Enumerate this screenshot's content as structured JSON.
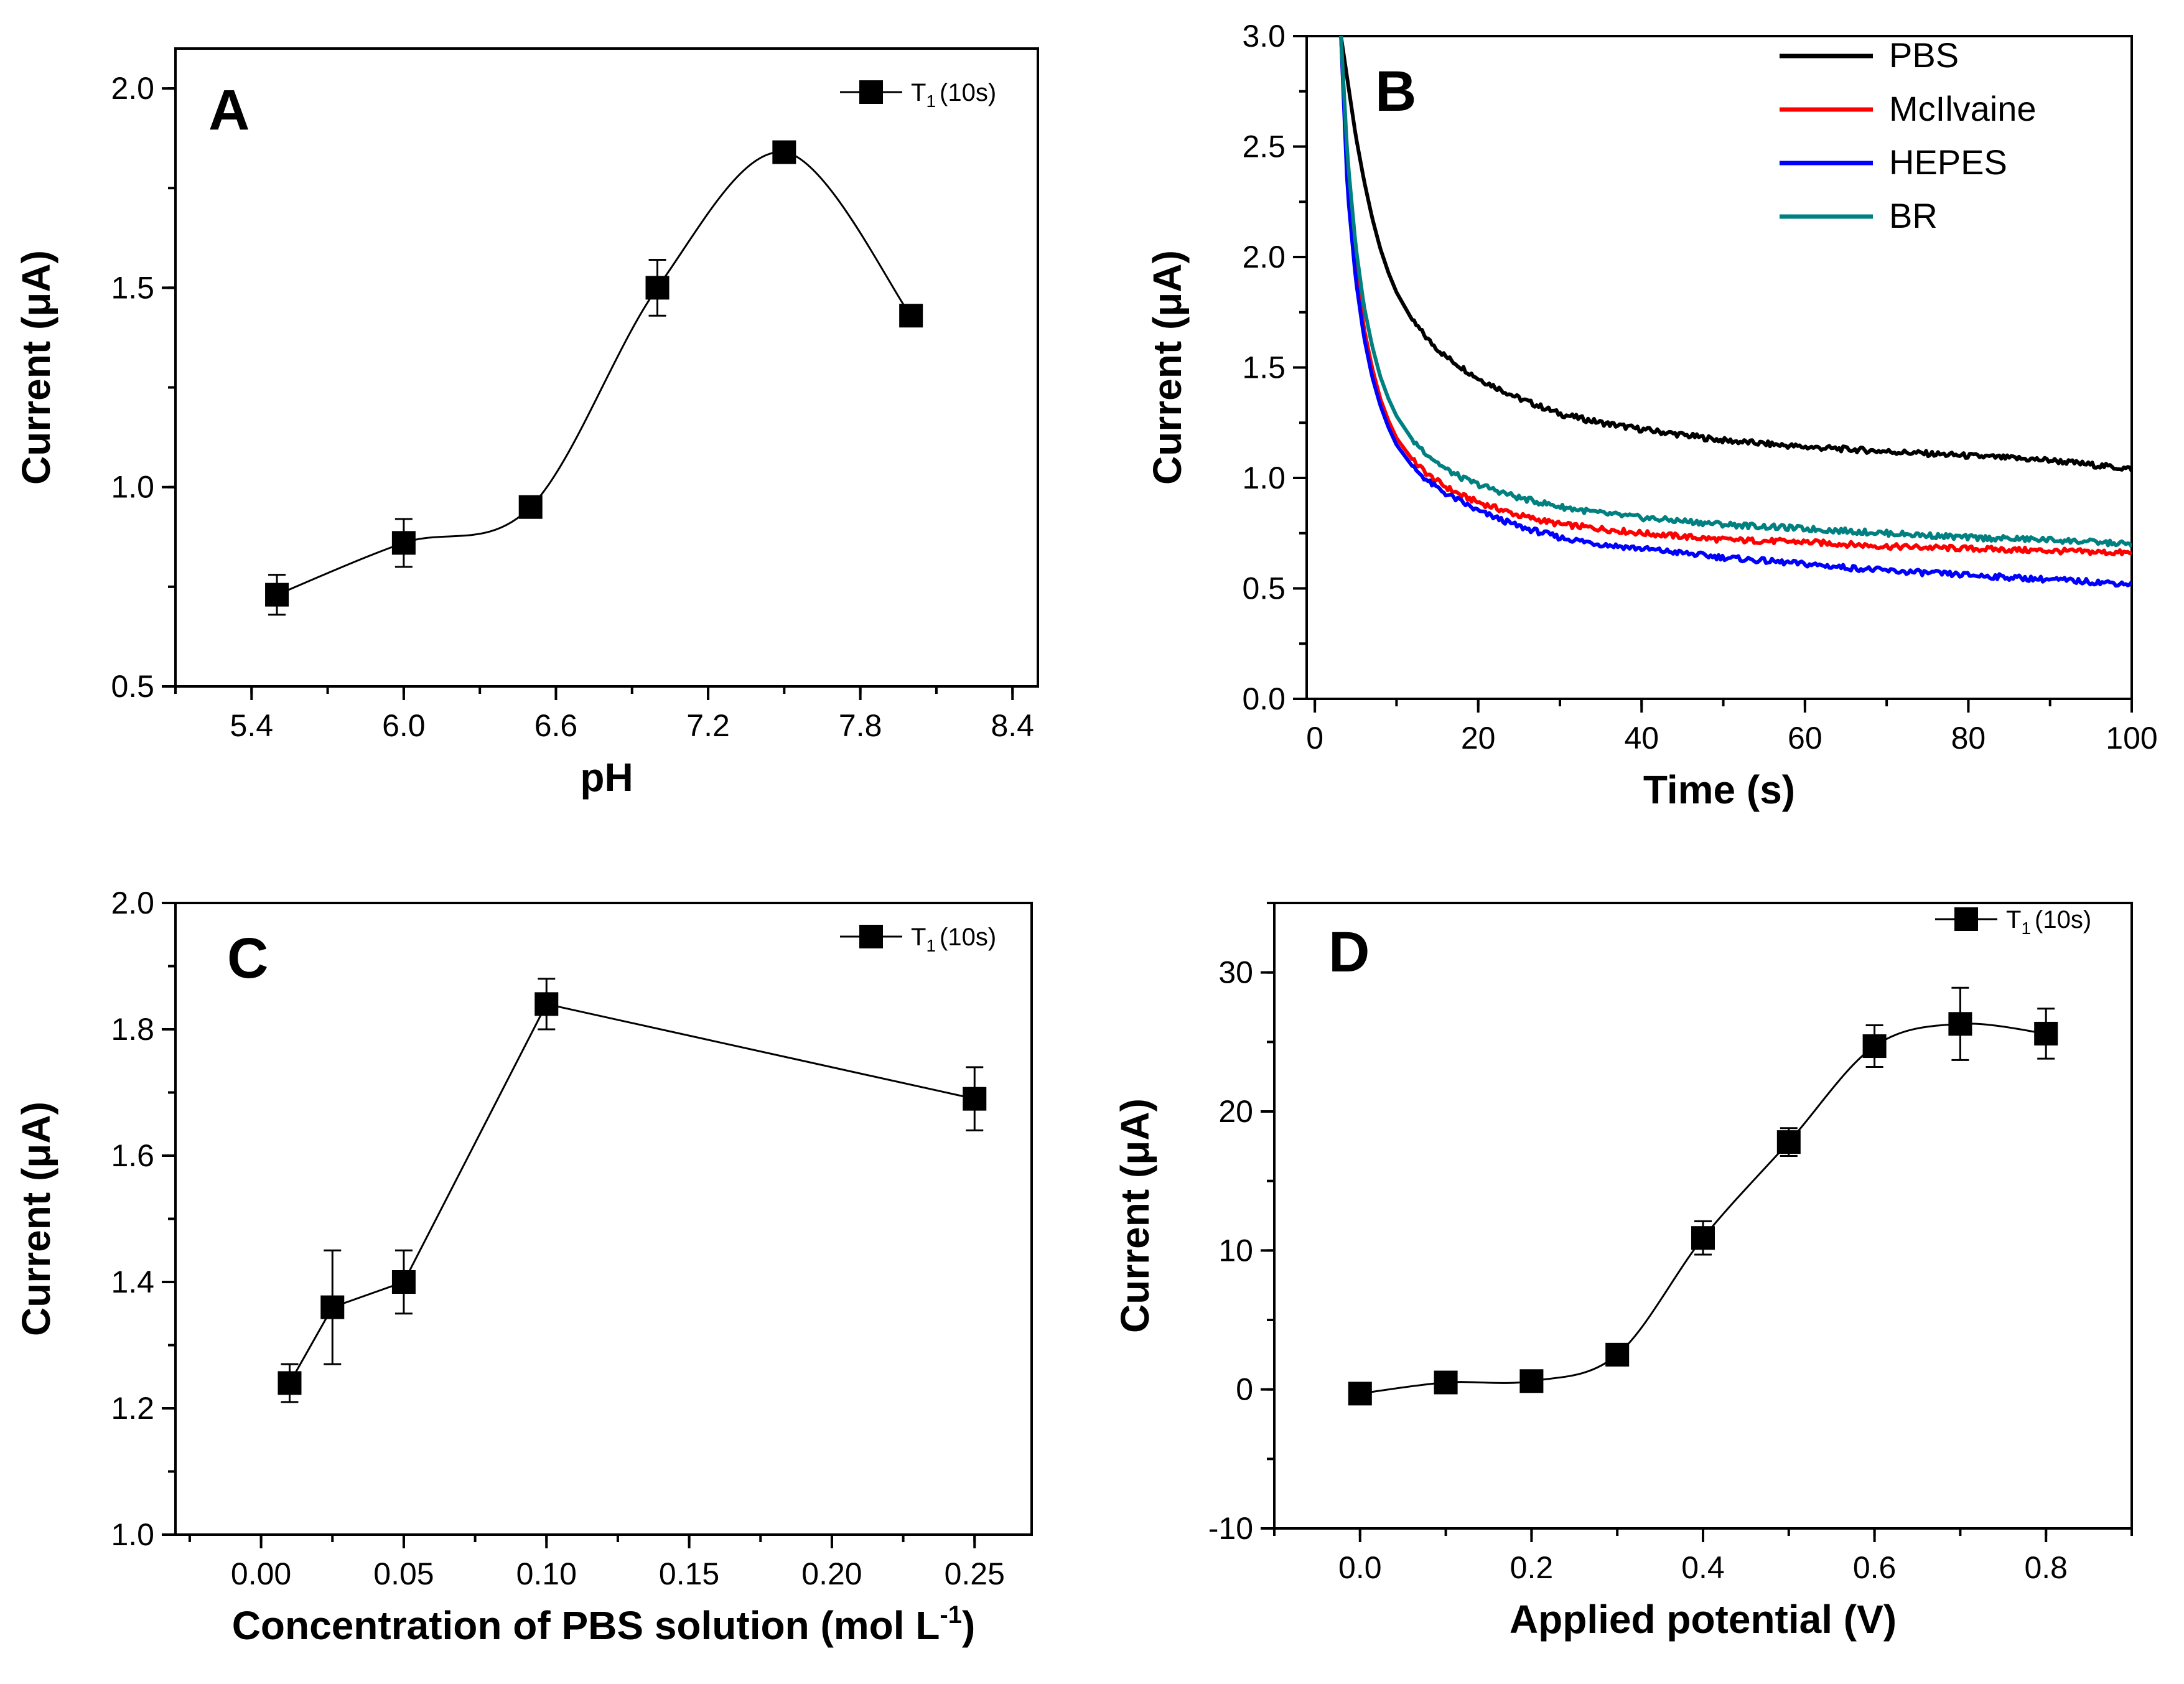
{
  "chart_data": [
    {
      "panel": "A",
      "type": "line",
      "connector": "spline",
      "xlabel": "pH",
      "ylabel": "Current (μA)",
      "xlim": [
        5.1,
        8.5
      ],
      "ylim": [
        0.5,
        2.1
      ],
      "xticks": [
        5.4,
        6.0,
        6.6,
        7.2,
        7.8,
        8.4
      ],
      "xtick_labels": [
        "5.4",
        "6.0",
        "6.6",
        "7.2",
        "7.8",
        "8.4"
      ],
      "xminor": 0.3,
      "yticks": [
        0.5,
        1.0,
        1.5,
        2.0
      ],
      "ytick_labels": [
        "0.5",
        "1.0",
        "1.5",
        "2.0"
      ],
      "yminor": 0.25,
      "legend": {
        "position": "top-right",
        "symbol": "T",
        "subscript": "1",
        "suffix": "(10s)"
      },
      "series": [
        {
          "name": "T1(10s)",
          "x": [
            5.5,
            6.0,
            6.5,
            7.0,
            7.5,
            8.0
          ],
          "y": [
            0.73,
            0.86,
            0.95,
            1.5,
            1.84,
            1.43
          ],
          "err": [
            0.05,
            0.06,
            0.0,
            0.07,
            0.0,
            0.0
          ]
        }
      ]
    },
    {
      "panel": "B",
      "type": "line",
      "xlabel": "Time (s)",
      "ylabel": "Current (μA)",
      "xlim": [
        -1,
        100
      ],
      "ylim": [
        0.0,
        3.0
      ],
      "xticks": [
        0,
        20,
        40,
        60,
        80,
        100
      ],
      "xtick_labels": [
        "0",
        "20",
        "40",
        "60",
        "80",
        "100"
      ],
      "xminor": 10,
      "yticks": [
        0.0,
        0.5,
        1.0,
        1.5,
        2.0,
        2.5,
        3.0
      ],
      "ytick_labels": [
        "0.0",
        "0.5",
        "1.0",
        "1.5",
        "2.0",
        "2.5",
        "3.0"
      ],
      "yminor": 0.25,
      "legend": {
        "position": "top-right"
      },
      "series": [
        {
          "name": "PBS",
          "color": "#000000",
          "x": [
            3.2,
            4,
            5,
            6,
            7,
            8,
            9,
            10,
            12,
            14,
            16,
            18,
            20,
            25,
            30,
            35,
            40,
            50,
            60,
            70,
            80,
            90,
            100
          ],
          "y": [
            3.0,
            2.8,
            2.55,
            2.35,
            2.18,
            2.04,
            1.93,
            1.84,
            1.71,
            1.62,
            1.55,
            1.5,
            1.45,
            1.36,
            1.29,
            1.25,
            1.22,
            1.17,
            1.14,
            1.12,
            1.1,
            1.08,
            1.04
          ]
        },
        {
          "name": "McIlvaine",
          "color": "#ff0000",
          "x": [
            3.2,
            4,
            5,
            6,
            7,
            8,
            9,
            10,
            12,
            14,
            16,
            18,
            20,
            25,
            30,
            35,
            40,
            50,
            60,
            70,
            80,
            90,
            100
          ],
          "y": [
            3.0,
            2.35,
            1.95,
            1.68,
            1.5,
            1.36,
            1.26,
            1.18,
            1.08,
            1.01,
            0.96,
            0.92,
            0.89,
            0.83,
            0.79,
            0.77,
            0.75,
            0.72,
            0.71,
            0.69,
            0.68,
            0.67,
            0.66
          ]
        },
        {
          "name": "HEPES",
          "color": "#0000ff",
          "x": [
            3.2,
            4,
            5,
            6,
            7,
            8,
            9,
            10,
            12,
            14,
            16,
            18,
            20,
            25,
            30,
            35,
            40,
            50,
            60,
            70,
            80,
            90,
            100
          ],
          "y": [
            3.0,
            2.3,
            1.9,
            1.64,
            1.46,
            1.33,
            1.23,
            1.15,
            1.05,
            0.98,
            0.93,
            0.89,
            0.85,
            0.78,
            0.73,
            0.7,
            0.68,
            0.64,
            0.61,
            0.58,
            0.56,
            0.54,
            0.52
          ]
        },
        {
          "name": "BR",
          "color": "#008080",
          "x": [
            3.2,
            4,
            5,
            6,
            7,
            8,
            9,
            10,
            12,
            14,
            16,
            18,
            20,
            25,
            30,
            35,
            40,
            50,
            60,
            70,
            80,
            90,
            100
          ],
          "y": [
            3.0,
            2.45,
            2.05,
            1.78,
            1.6,
            1.46,
            1.36,
            1.28,
            1.17,
            1.1,
            1.04,
            1.0,
            0.97,
            0.91,
            0.87,
            0.84,
            0.82,
            0.79,
            0.77,
            0.75,
            0.73,
            0.72,
            0.7
          ]
        }
      ]
    },
    {
      "panel": "C",
      "type": "line",
      "connector": "straight",
      "xlabel": "Concentration of PBS solution (mol L",
      "xlabel_sup": "-1",
      "xlabel_end": ")",
      "ylabel": "Current (μA)",
      "xlim": [
        -0.03,
        0.27
      ],
      "ylim": [
        1.0,
        2.0
      ],
      "xticks": [
        0.0,
        0.05,
        0.1,
        0.15,
        0.2,
        0.25
      ],
      "xtick_labels": [
        "0.00",
        "0.05",
        "0.10",
        "0.15",
        "0.20",
        "0.25"
      ],
      "xminor": 0.025,
      "yticks": [
        1.0,
        1.2,
        1.4,
        1.6,
        1.8,
        2.0
      ],
      "ytick_labels": [
        "1.0",
        "1.2",
        "1.4",
        "1.6",
        "1.8",
        "2.0"
      ],
      "yminor": 0.1,
      "legend": {
        "position": "top-right",
        "symbol": "T",
        "subscript": "1",
        "suffix": "(10s)"
      },
      "series": [
        {
          "name": "T1(10s)",
          "x": [
            0.01,
            0.025,
            0.05,
            0.1,
            0.25
          ],
          "y": [
            1.24,
            1.36,
            1.4,
            1.84,
            1.69
          ],
          "err": [
            0.03,
            0.09,
            0.05,
            0.04,
            0.05
          ]
        }
      ]
    },
    {
      "panel": "D",
      "type": "line",
      "connector": "spline",
      "xlabel": "Applied potential (V)",
      "ylabel": "Current (μA)",
      "xlim": [
        -0.1,
        0.9
      ],
      "ylim": [
        -10,
        35
      ],
      "xticks": [
        0.0,
        0.2,
        0.4,
        0.6,
        0.8
      ],
      "xtick_labels": [
        "0.0",
        "0.2",
        "0.4",
        "0.6",
        "0.8"
      ],
      "xminor": 0.1,
      "yticks": [
        -10,
        0,
        10,
        20,
        30
      ],
      "ytick_labels": [
        "-10",
        "0",
        "10",
        "20",
        "30"
      ],
      "yminor": 5,
      "legend": {
        "position": "top-right",
        "symbol": "T",
        "subscript": "1",
        "suffix": "(10s)"
      },
      "series": [
        {
          "name": "T1(10s)",
          "x": [
            0.0,
            0.1,
            0.2,
            0.3,
            0.4,
            0.5,
            0.6,
            0.7,
            0.8
          ],
          "y": [
            -0.3,
            0.5,
            0.6,
            2.5,
            10.9,
            17.8,
            24.7,
            26.3,
            25.6
          ],
          "err": [
            0.0,
            0.0,
            0.0,
            0.0,
            1.2,
            1.0,
            1.5,
            2.6,
            1.8
          ]
        }
      ]
    }
  ]
}
